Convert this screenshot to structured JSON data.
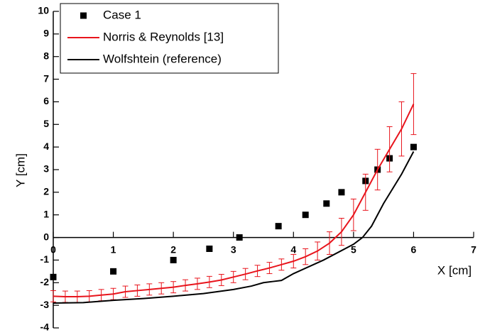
{
  "chart_data": {
    "type": "line",
    "xlabel": "X [cm]",
    "ylabel": "Y [cm]",
    "xlim": [
      0,
      7
    ],
    "ylim": [
      -4,
      10
    ],
    "xticks": [
      0,
      1,
      2,
      3,
      4,
      5,
      6,
      7
    ],
    "yticks": [
      -4,
      -3,
      -2,
      -1,
      0,
      1,
      2,
      3,
      4,
      5,
      6,
      7,
      8,
      9,
      10
    ],
    "legend": "upper-left",
    "series": [
      {
        "name": "Case 1",
        "kind": "scatter",
        "color": "#000000",
        "x": [
          0,
          1,
          2,
          2.6,
          3.1,
          3.75,
          4.2,
          4.55,
          4.8,
          5.2,
          5.4,
          5.6,
          6
        ],
        "values": [
          -1.75,
          -1.5,
          -1,
          -0.5,
          0,
          0.5,
          1,
          1.5,
          2,
          2.5,
          3,
          3.5,
          4
        ]
      },
      {
        "name": "Norris & Reynolds [13]",
        "kind": "line",
        "color": "#e8141c",
        "x": [
          0,
          0.2,
          0.4,
          0.6,
          0.8,
          1,
          1.2,
          1.4,
          1.6,
          1.8,
          2,
          2.2,
          2.4,
          2.6,
          2.8,
          3,
          3.2,
          3.4,
          3.6,
          3.8,
          4,
          4.2,
          4.4,
          4.6,
          4.8,
          5,
          5.2,
          5.4,
          5.6,
          5.8,
          6
        ],
        "values": [
          -2.6,
          -2.62,
          -2.62,
          -2.6,
          -2.55,
          -2.5,
          -2.4,
          -2.35,
          -2.3,
          -2.25,
          -2.2,
          -2.12,
          -2.05,
          -1.97,
          -1.88,
          -1.75,
          -1.62,
          -1.48,
          -1.35,
          -1.2,
          -1.05,
          -0.85,
          -0.6,
          -0.25,
          0.25,
          1,
          2,
          3,
          3.9,
          4.8,
          5.9
        ],
        "errors": [
          0.25,
          0.25,
          0.25,
          0.25,
          0.25,
          0.25,
          0.25,
          0.25,
          0.25,
          0.25,
          0.25,
          0.25,
          0.25,
          0.25,
          0.25,
          0.25,
          0.25,
          0.25,
          0.25,
          0.25,
          0.3,
          0.35,
          0.4,
          0.5,
          0.6,
          0.7,
          0.8,
          0.9,
          1,
          1.2,
          1.35
        ]
      },
      {
        "name": "Wolfshtein (reference)",
        "kind": "line",
        "color": "#000000",
        "x": [
          0,
          0.5,
          1,
          1.5,
          2,
          2.5,
          3,
          3.3,
          3.5,
          3.65,
          3.8,
          4,
          4.5,
          5,
          5.15,
          5.3,
          5.5,
          5.8,
          6
        ],
        "values": [
          -2.9,
          -2.88,
          -2.78,
          -2.7,
          -2.6,
          -2.48,
          -2.3,
          -2.15,
          -2,
          -1.95,
          -1.9,
          -1.6,
          -1,
          -0.3,
          0,
          0.5,
          1.5,
          2.8,
          3.8
        ]
      }
    ]
  }
}
